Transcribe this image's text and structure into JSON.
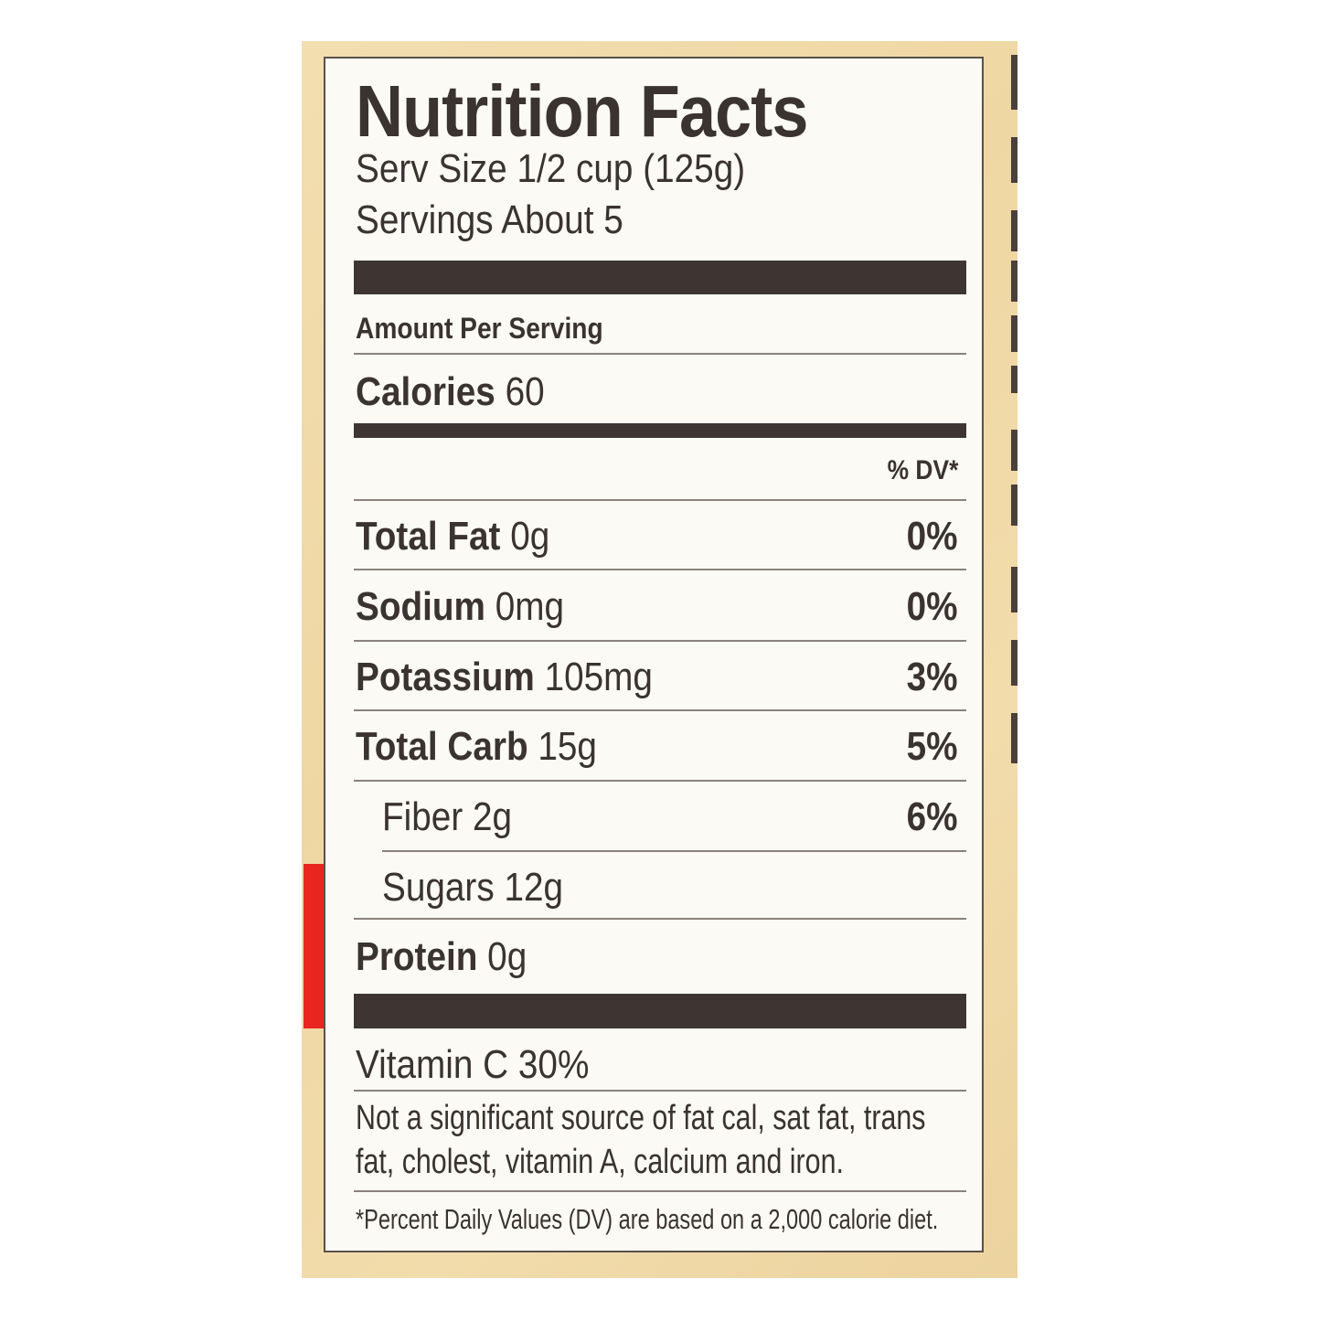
{
  "label": {
    "title": "Nutrition Facts",
    "serving_size": "Serv Size 1/2 cup (125g)",
    "servings": "Servings About 5",
    "amount_per_serving": "Amount Per Serving",
    "calories_label": "Calories",
    "calories_value": "60",
    "dv_header": "% DV*",
    "nutrients": [
      {
        "name": "Total Fat",
        "amount": "0g",
        "dv": "0%"
      },
      {
        "name": "Sodium",
        "amount": "0mg",
        "dv": "0%"
      },
      {
        "name": "Potassium",
        "amount": "105mg",
        "dv": "3%"
      },
      {
        "name": "Total Carb",
        "amount": "15g",
        "dv": "5%"
      },
      {
        "name": "Fiber 2g",
        "dv": "6%"
      },
      {
        "name": "Sugars 12g"
      },
      {
        "name": "Protein",
        "amount": "0g"
      }
    ],
    "vitamin": "Vitamin C 30%",
    "note_line1": "Not a significant source of fat cal, sat fat, trans",
    "note_line2": "fat, cholest, vitamin A, calcium and iron.",
    "footnote": "*Percent Daily Values (DV) are based on a 2,000 calorie diet."
  },
  "colors": {
    "ink": "#3e3533",
    "accent_red": "#e8261f",
    "package": "#f0d9a8"
  }
}
